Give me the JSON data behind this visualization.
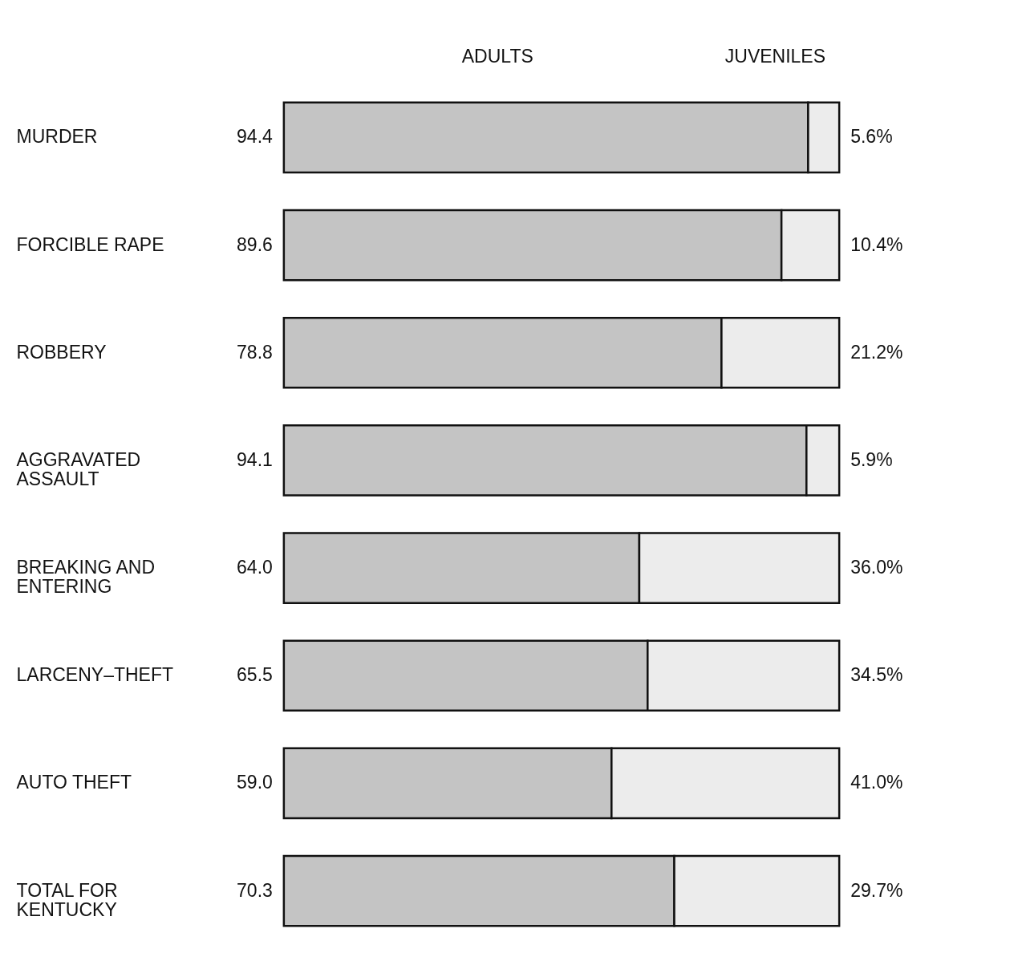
{
  "chart_data": {
    "type": "bar",
    "orientation": "horizontal",
    "stacked": true,
    "legend": false,
    "categories": [
      "MURDER",
      "FORCIBLE RAPE",
      "ROBBERY",
      "AGGRAVATED ASSAULT",
      "BREAKING AND ENTERING",
      "LARCENY–THEFT",
      "AUTO THEFT",
      "TOTAL FOR KENTUCKY"
    ],
    "series": [
      {
        "name": "ADULTS",
        "color": "#c4c4c4",
        "values": [
          94.4,
          89.6,
          78.8,
          94.1,
          64.0,
          65.5,
          59.0,
          70.3
        ],
        "value_labels": [
          "94.4",
          "89.6",
          "78.8",
          "94.1",
          "64.0",
          "65.5",
          "59.0",
          "70.3"
        ]
      },
      {
        "name": "JUVENILES",
        "color": "#ececec",
        "values": [
          5.6,
          10.4,
          21.2,
          5.9,
          36.0,
          34.5,
          41.0,
          29.7
        ],
        "value_labels": [
          "5.6%",
          "10.4%",
          "21.2%",
          "5.9%",
          "36.0%",
          "34.5%",
          "41.0%",
          "29.7%"
        ]
      }
    ]
  }
}
